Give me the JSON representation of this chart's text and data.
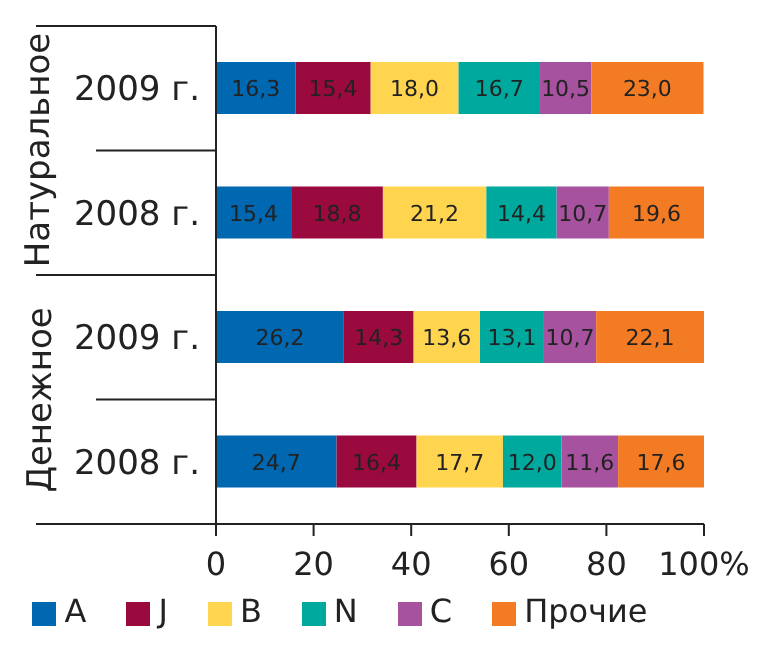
{
  "chart_data": {
    "type": "bar",
    "orientation": "horizontal",
    "stacked": true,
    "categories": [
      "2009 г.",
      "2008 г.",
      "2009 г.",
      "2008 г."
    ],
    "series": [
      {
        "name": "A",
        "color": "#0067b1",
        "values": [
          16.3,
          15.4,
          26.2,
          24.7
        ],
        "value_labels": [
          "16,3",
          "15,4",
          "26,2",
          "24,7"
        ]
      },
      {
        "name": "J",
        "color": "#9b0a3f",
        "values": [
          15.4,
          18.8,
          14.3,
          16.4
        ],
        "value_labels": [
          "15,4",
          "18,8",
          "14,3",
          "16,4"
        ]
      },
      {
        "name": "B",
        "color": "#ffd54f",
        "values": [
          18.0,
          21.2,
          13.6,
          17.7
        ],
        "value_labels": [
          "18,0",
          "21,2",
          "13,6",
          "17,7"
        ]
      },
      {
        "name": "N",
        "color": "#00a99d",
        "values": [
          16.7,
          14.4,
          13.1,
          12.0
        ],
        "value_labels": [
          "16,7",
          "14,4",
          "13,1",
          "12,0"
        ]
      },
      {
        "name": "C",
        "color": "#a6529f",
        "values": [
          10.5,
          10.7,
          10.7,
          11.6
        ],
        "value_labels": [
          "10,5",
          "10,7",
          "10,7",
          "11,6"
        ]
      },
      {
        "name": "Прочие",
        "color": "#f37b23",
        "values": [
          23.0,
          19.6,
          22.1,
          17.6
        ],
        "value_labels": [
          "23,0",
          "19,6",
          "22,1",
          "17,6"
        ]
      }
    ],
    "xlim": [
      0,
      100
    ],
    "xticks": [
      0,
      20,
      40,
      60,
      80,
      {
        "value": 100,
        "label": "100%"
      }
    ],
    "annotations": [
      "Натуральное",
      "Денежное"
    ],
    "grid": false,
    "legend": "bottom"
  }
}
